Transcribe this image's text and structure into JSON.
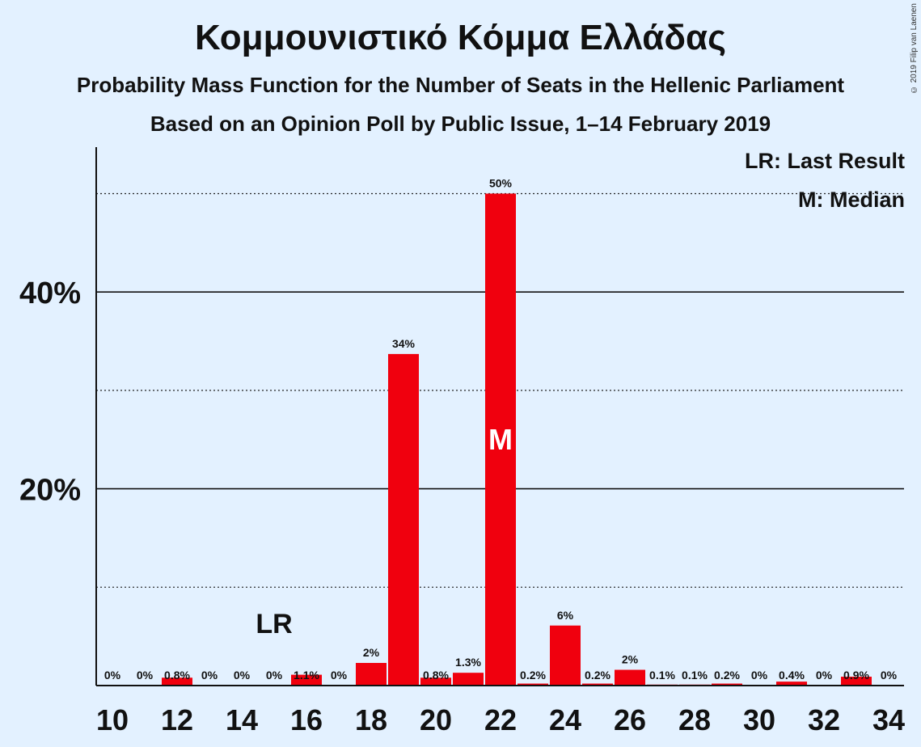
{
  "title": "Κομμουνιστικό Κόμμα Ελλάδας",
  "subtitle_1": "Probability Mass Function for the Number of Seats in the Hellenic Parliament",
  "subtitle_2": "Based on an Opinion Poll by Public Issue, 1–14 February 2019",
  "copyright": "© 2019 Filip van Laenen",
  "legend": {
    "last_result": "LR: Last Result",
    "median": "M: Median"
  },
  "colors": {
    "bar": "#f0000e",
    "background": "#e3f1ff"
  },
  "chart_data": {
    "type": "bar",
    "x": [
      10,
      11,
      12,
      13,
      14,
      15,
      16,
      17,
      18,
      19,
      20,
      21,
      22,
      23,
      24,
      25,
      26,
      27,
      28,
      29,
      30,
      31,
      32,
      33,
      34
    ],
    "values": [
      0,
      0,
      0.8,
      0,
      0,
      0,
      1.1,
      0,
      2.3,
      33.7,
      0.8,
      1.3,
      50.0,
      0.2,
      6.1,
      0.2,
      1.6,
      0.1,
      0.1,
      0.2,
      0,
      0.4,
      0,
      0.9,
      0
    ],
    "value_labels": [
      "0%",
      "0%",
      "0.8%",
      "0%",
      "0%",
      "0%",
      "1.1%",
      "0%",
      "2%",
      "34%",
      "0.8%",
      "1.3%",
      "50%",
      "0.2%",
      "6%",
      "0.2%",
      "2%",
      "0.1%",
      "0.1%",
      "0.2%",
      "0%",
      "0.4%",
      "0%",
      "0.9%",
      "0%"
    ],
    "x_ticks": [
      "10",
      "12",
      "14",
      "16",
      "18",
      "20",
      "22",
      "24",
      "26",
      "28",
      "30",
      "32",
      "34"
    ],
    "y_ticks": [
      "20%",
      "40%"
    ],
    "ylim": [
      0,
      55
    ],
    "gridlines": {
      "solid": [
        20,
        40
      ],
      "dotted": [
        10,
        30,
        50
      ]
    },
    "last_result": {
      "x": 15,
      "label": "LR"
    },
    "median": {
      "x": 22,
      "label": "M"
    }
  }
}
